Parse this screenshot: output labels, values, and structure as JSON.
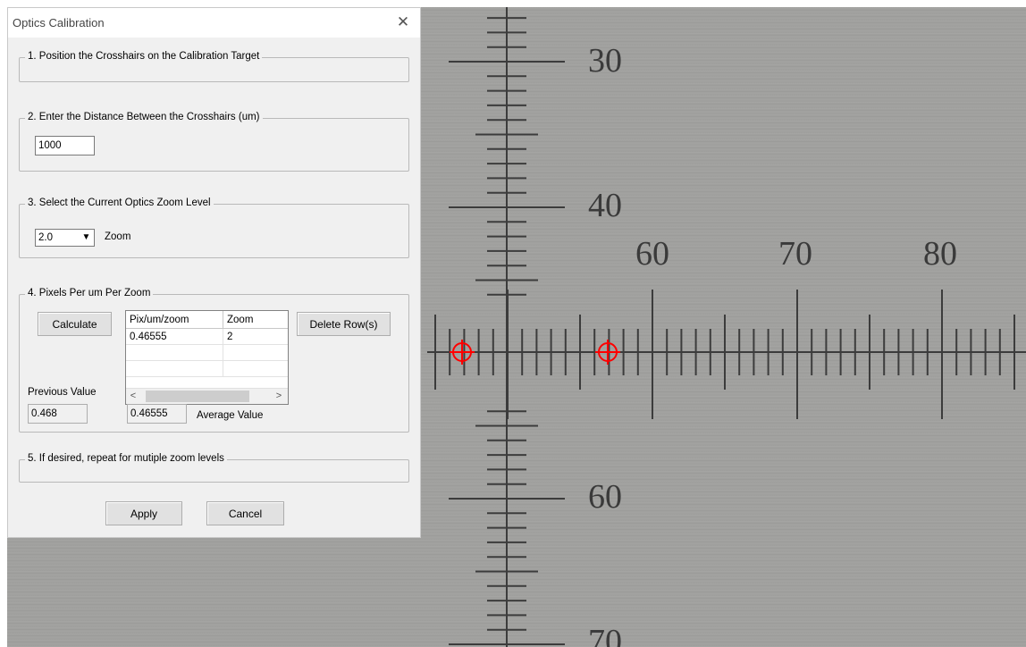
{
  "camera": {
    "vertical_scale_labels": [
      "30",
      "40",
      "60",
      "70"
    ],
    "horizontal_scale_labels": [
      "60",
      "70",
      "80"
    ],
    "crosshair_color": "#ff0000",
    "crosshair_count": 2
  },
  "dialog": {
    "title": "Optics Calibration",
    "close_icon": "close-icon",
    "step1": {
      "legend": "1.  Position the Crosshairs on the Calibration Target"
    },
    "step2": {
      "legend": "2.  Enter the Distance Between the Crosshairs (um)",
      "distance_value": "1000"
    },
    "step3": {
      "legend": "3.  Select the Current Optics Zoom Level",
      "zoom_selected": "2.0",
      "zoom_label": "Zoom"
    },
    "step4": {
      "legend": "4.  Pixels Per um Per Zoom",
      "calculate_label": "Calculate",
      "delete_label": "Delete Row(s)",
      "grid": {
        "columns": [
          "Pix/um/zoom",
          "Zoom"
        ],
        "rows": [
          [
            "0.46555",
            "2"
          ]
        ]
      },
      "previous_label": "Previous Value",
      "previous_value": "0.468",
      "average_value": "0.46555",
      "average_label": "Average Value"
    },
    "step5": {
      "legend": "5.  If desired, repeat for mutiple zoom levels"
    },
    "apply_label": "Apply",
    "cancel_label": "Cancel"
  }
}
